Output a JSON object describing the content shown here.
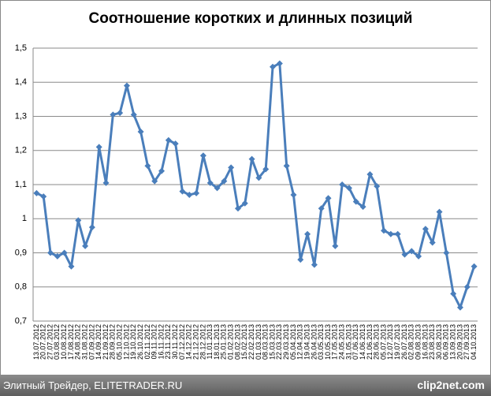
{
  "chart_data": {
    "type": "line",
    "title": "Соотношение коротких и длинных позиций",
    "categories": [
      "13.07.2012",
      "20.07.2012",
      "27.07.2012",
      "03.08.2012",
      "10.08.2012",
      "17.08.2012",
      "24.08.2012",
      "31.08.2012",
      "07.09.2012",
      "14.09.2012",
      "21.09.2012",
      "28.09.2012",
      "05.10.2012",
      "12.10.2012",
      "19.10.2012",
      "26.10.2012",
      "02.11.2012",
      "09.11.2012",
      "16.11.2012",
      "23.11.2012",
      "30.11.2012",
      "07.12.2012",
      "14.12.2012",
      "21.12.2012",
      "28.12.2012",
      "11.01.2013",
      "18.01.2013",
      "25.01.2013",
      "01.02.2013",
      "08.02.2013",
      "15.02.2013",
      "22.02.2013",
      "01.03.2013",
      "08.03.2013",
      "15.03.2013",
      "22.03.2013",
      "29.03.2013",
      "05.04.2013",
      "12.04.2013",
      "19.04.2013",
      "26.04.2013",
      "03.05.2013",
      "10.05.2013",
      "17.05.2013",
      "24.05.2013",
      "31.05.2013",
      "07.06.2013",
      "14.06.2013",
      "21.06.2013",
      "28.06.2013",
      "05.07.2013",
      "12.07.2013",
      "19.07.2013",
      "26.07.2013",
      "02.08.2013",
      "09.08.2013",
      "16.08.2013",
      "23.08.2013",
      "30.08.2013",
      "06.09.2013",
      "13.09.2013",
      "20.09.2013",
      "27.09.2013",
      "04.10.2013"
    ],
    "series": [
      {
        "color": "#4a7ebb",
        "values": [
          1.075,
          1.065,
          0.9,
          0.89,
          0.9,
          0.86,
          0.995,
          0.92,
          0.975,
          1.21,
          1.105,
          1.305,
          1.31,
          1.39,
          1.305,
          1.255,
          1.155,
          1.11,
          1.14,
          1.23,
          1.22,
          1.08,
          1.07,
          1.075,
          1.185,
          1.105,
          1.09,
          1.11,
          1.15,
          1.03,
          1.045,
          1.175,
          1.12,
          1.145,
          1.445,
          1.455,
          1.155,
          1.07,
          0.88,
          0.955,
          0.865,
          1.03,
          1.06,
          0.92,
          1.1,
          1.09,
          1.05,
          1.035,
          1.13,
          1.095,
          0.965,
          0.955,
          0.955,
          0.895,
          0.905,
          0.89,
          0.97,
          0.93,
          1.02,
          0.9,
          0.78,
          0.74,
          0.8,
          0.86
        ]
      }
    ],
    "ylim": [
      0.7,
      1.5
    ],
    "yticks": [
      {
        "value": 0.7,
        "label": "0,7"
      },
      {
        "value": 0.8,
        "label": "0,8"
      },
      {
        "value": 0.9,
        "label": "0,9"
      },
      1,
      {
        "value": 1.1,
        "label": "1,1"
      },
      {
        "value": 1.2,
        "label": "1,2"
      },
      {
        "value": 1.3,
        "label": "1,3"
      },
      {
        "value": 1.4,
        "label": "1,4"
      },
      {
        "value": 1.5,
        "label": "1,5"
      }
    ],
    "grid": true
  },
  "footer": {
    "source": "Элитный Трейдер, ELITETRADER.RU",
    "watermark": "clip2net.com"
  }
}
